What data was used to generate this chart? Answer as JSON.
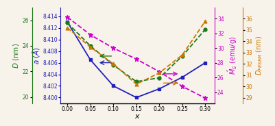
{
  "x": [
    0.0,
    0.05,
    0.1,
    0.15,
    0.2,
    0.25,
    0.3
  ],
  "a_lattice": [
    8.413,
    8.4065,
    8.402,
    8.4,
    8.4015,
    8.4035,
    8.406
  ],
  "D_xrd": [
    25.8,
    24.0,
    22.5,
    21.2,
    21.5,
    23.2,
    25.3
  ],
  "Ms": [
    34.2,
    31.8,
    30.0,
    28.5,
    26.8,
    24.8,
    23.2
  ],
  "D_fesem": [
    35.2,
    33.5,
    32.0,
    30.2,
    31.2,
    32.8,
    35.8
  ],
  "a_color": "#2020bb",
  "D_xrd_color": "#1a7a1a",
  "Ms_color": "#cc00cc",
  "D_fesem_color": "#cc7700",
  "a_ylim": [
    8.399,
    8.4155
  ],
  "a_yticks": [
    8.4,
    8.402,
    8.404,
    8.406,
    8.408,
    8.41,
    8.412,
    8.414
  ],
  "D_xrd_ylim": [
    19.5,
    27.0
  ],
  "D_xrd_yticks": [
    20,
    22,
    24,
    26
  ],
  "Ms_ylim": [
    22.5,
    35.5
  ],
  "Ms_yticks": [
    24,
    26,
    28,
    30,
    32,
    34
  ],
  "D_fesem_ylim": [
    28.5,
    37.0
  ],
  "D_fesem_yticks": [
    29,
    30,
    31,
    32,
    33,
    34,
    35,
    36
  ],
  "bg_color": "#f7f2ea"
}
